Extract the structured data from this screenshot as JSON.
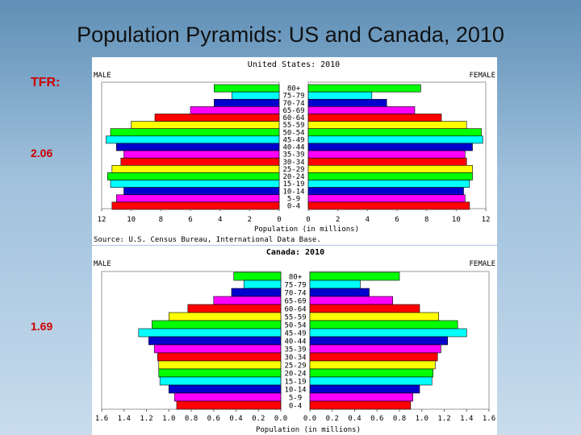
{
  "slide": {
    "title": "Population Pyramids: US and Canada, 2010",
    "tfr_label": "TFR:",
    "tfr_us": "2.06",
    "tfr_canada": "1.69"
  },
  "chart_data": [
    {
      "type": "bar",
      "title": "United States: 2010",
      "left_label": "MALE",
      "right_label": "FEMALE",
      "xlabel": "Population (in millions)",
      "source": "Source: U.S. Census Bureau, International Data Base.",
      "xlim": [
        0,
        12
      ],
      "tick_labels_left": [
        "12",
        "10",
        "8",
        "6",
        "4",
        "2",
        "0"
      ],
      "tick_labels_right": [
        "0",
        "2",
        "4",
        "6",
        "8",
        "10",
        "12"
      ],
      "categories": [
        "80+",
        "75-79",
        "70-74",
        "65-69",
        "60-64",
        "55-59",
        "50-54",
        "45-49",
        "40-44",
        "35-39",
        "30-34",
        "25-29",
        "20-24",
        "15-19",
        "10-14",
        "5-9",
        "0-4"
      ],
      "colors": [
        "#00ff00",
        "#00ffff",
        "#0000cc",
        "#ff00ff",
        "#ff0000",
        "#ffff00",
        "#00ff00",
        "#00ffff",
        "#0000cc",
        "#ff00ff",
        "#ff0000",
        "#ffff00",
        "#00ff00",
        "#00ffff",
        "#0000cc",
        "#ff00ff",
        "#ff0000"
      ],
      "series": [
        {
          "name": "MALE",
          "values": [
            4.4,
            3.2,
            4.4,
            6.0,
            8.4,
            10.0,
            11.4,
            11.7,
            11.0,
            10.5,
            10.7,
            11.3,
            11.6,
            11.4,
            10.5,
            11.0,
            11.3
          ]
        },
        {
          "name": "FEMALE",
          "values": [
            7.6,
            4.3,
            5.3,
            7.2,
            9.0,
            10.7,
            11.7,
            11.8,
            11.1,
            10.6,
            10.7,
            11.1,
            11.1,
            10.9,
            10.5,
            10.6,
            10.9
          ]
        }
      ]
    },
    {
      "type": "bar",
      "title": "Canada: 2010",
      "left_label": "MALE",
      "right_label": "FEMALE",
      "xlabel": "Population (in millions)",
      "xlim": [
        0,
        1.6
      ],
      "tick_labels_left": [
        "1.6",
        "1.4",
        "1.2",
        "1.0",
        "0.8",
        "0.6",
        "0.4",
        "0.2",
        "0.0"
      ],
      "tick_labels_right": [
        "0.0",
        "0.2",
        "0.4",
        "0.6",
        "0.8",
        "1.0",
        "1.2",
        "1.4",
        "1.6"
      ],
      "categories": [
        "80+",
        "75-79",
        "70-74",
        "65-69",
        "60-64",
        "55-59",
        "50-54",
        "45-49",
        "40-44",
        "35-39",
        "30-34",
        "25-29",
        "20-24",
        "15-19",
        "10-14",
        "5-9",
        "0-4"
      ],
      "colors": [
        "#00ff00",
        "#00ffff",
        "#0000cc",
        "#ff00ff",
        "#ff0000",
        "#ffff00",
        "#00ff00",
        "#00ffff",
        "#0000cc",
        "#ff00ff",
        "#ff0000",
        "#ffff00",
        "#00ff00",
        "#00ffff",
        "#0000cc",
        "#ff00ff",
        "#ff0000"
      ],
      "series": [
        {
          "name": "MALE",
          "values": [
            0.42,
            0.33,
            0.44,
            0.6,
            0.83,
            1.0,
            1.15,
            1.27,
            1.18,
            1.13,
            1.1,
            1.09,
            1.09,
            1.08,
            1.0,
            0.95,
            0.93
          ]
        },
        {
          "name": "FEMALE",
          "values": [
            0.8,
            0.45,
            0.53,
            0.74,
            0.98,
            1.15,
            1.32,
            1.4,
            1.23,
            1.17,
            1.14,
            1.12,
            1.1,
            1.09,
            0.98,
            0.92,
            0.9
          ]
        }
      ]
    }
  ]
}
